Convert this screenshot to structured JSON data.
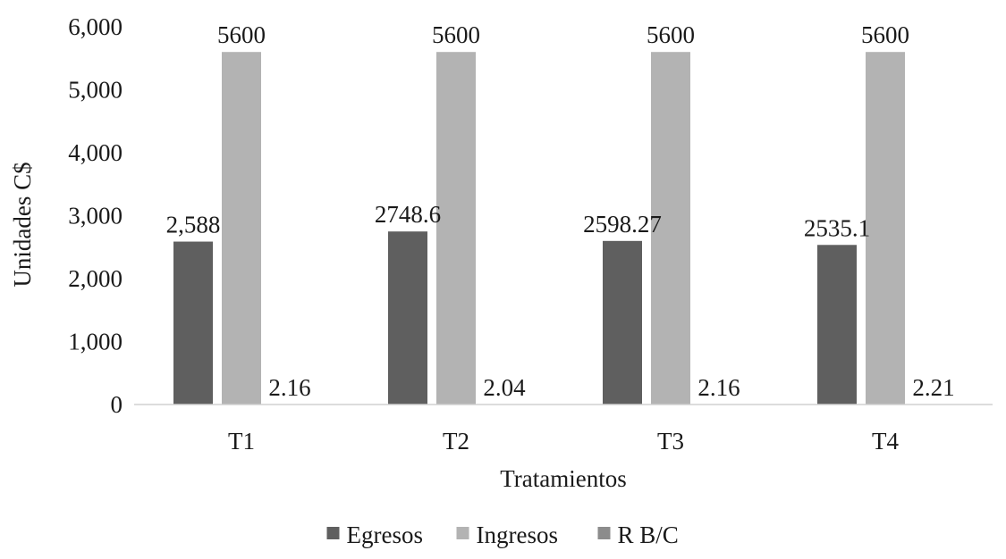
{
  "chart_data": {
    "type": "bar",
    "title": "",
    "xlabel": "Tratamientos",
    "ylabel": "Unidades C$",
    "categories": [
      "T1",
      "T2",
      "T3",
      "T4"
    ],
    "ylim": [
      0,
      6000
    ],
    "yticks": [
      0,
      1000,
      2000,
      3000,
      4000,
      5000,
      6000
    ],
    "ytick_labels": [
      "0",
      "1,000",
      "2,000",
      "3,000",
      "4,000",
      "5,000",
      "6,000"
    ],
    "grid": false,
    "legend_position": "bottom",
    "series": [
      {
        "name": "Egresos",
        "color": "#5f5f5f",
        "values": [
          2588,
          2748.6,
          2598.27,
          2535.1
        ],
        "labels": [
          "2,588",
          "2748.6",
          "2598.27",
          "2535.1"
        ]
      },
      {
        "name": "Ingresos",
        "color": "#b3b3b3",
        "values": [
          5600,
          5600,
          5600,
          5600
        ],
        "labels": [
          "5600",
          "5600",
          "5600",
          "5600"
        ]
      },
      {
        "name": "R B/C",
        "color": "#8c8c8c",
        "values": [
          2.16,
          2.04,
          2.16,
          2.21
        ],
        "labels": [
          "2.16",
          "2.04",
          "2.16",
          "2.21"
        ]
      }
    ]
  }
}
